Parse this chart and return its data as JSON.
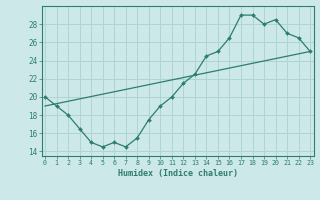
{
  "line1_x": [
    0,
    1,
    2,
    3,
    4,
    5,
    6,
    7,
    8,
    9,
    10,
    11,
    12,
    13,
    14,
    15,
    16,
    17,
    18,
    19,
    20,
    21,
    22,
    23
  ],
  "line1_y": [
    20.0,
    19.0,
    18.0,
    16.5,
    15.0,
    14.5,
    15.0,
    14.5,
    15.5,
    17.5,
    19.0,
    20.0,
    21.5,
    22.5,
    24.5,
    25.0,
    26.5,
    29.0,
    29.0,
    28.0,
    28.5,
    27.0,
    26.5,
    25.0
  ],
  "line2_x": [
    0,
    23
  ],
  "line2_y": [
    19.0,
    25.0
  ],
  "color": "#2e7d6e",
  "bg_color": "#cce8e8",
  "grid_color": "#aed4d4",
  "xlabel": "Humidex (Indice chaleur)",
  "ylim": [
    13.5,
    30.0
  ],
  "xlim": [
    -0.3,
    23.3
  ],
  "yticks": [
    14,
    16,
    18,
    20,
    22,
    24,
    26,
    28
  ],
  "xticks": [
    0,
    1,
    2,
    3,
    4,
    5,
    6,
    7,
    8,
    9,
    10,
    11,
    12,
    13,
    14,
    15,
    16,
    17,
    18,
    19,
    20,
    21,
    22,
    23
  ],
  "figsize": [
    3.2,
    2.0
  ],
  "dpi": 100
}
